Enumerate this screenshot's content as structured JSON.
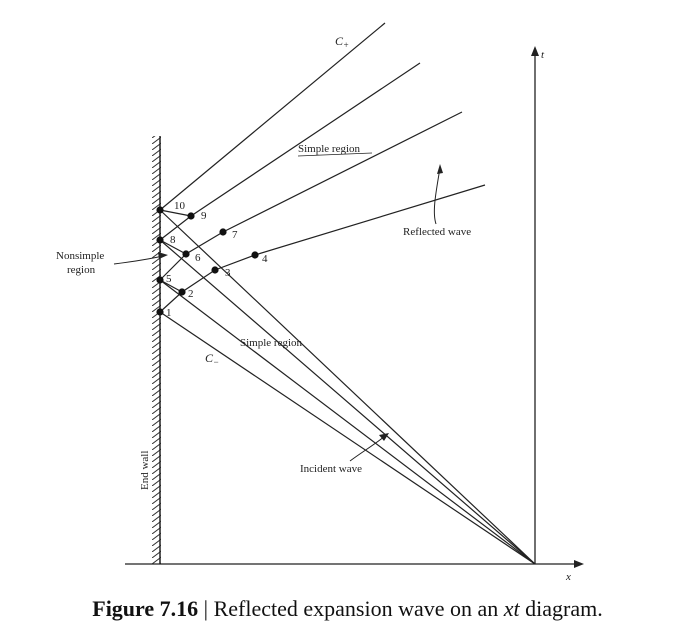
{
  "labels": {
    "c_plus": "C",
    "c_plus_sub": "+",
    "c_minus": "C",
    "c_minus_sub": "−",
    "simple_region_top": "Simple region",
    "simple_region_bottom": "Simple region",
    "reflected_wave": "Reflected wave",
    "nonsimple_line1": "Nonsimple",
    "nonsimple_line2": "region",
    "incident_wave": "Incident wave",
    "end_wall": "End wall",
    "t_axis": "t",
    "x_axis": "x"
  },
  "points": [
    "1",
    "2",
    "3",
    "4",
    "5",
    "6",
    "7",
    "8",
    "9",
    "10"
  ],
  "caption": {
    "figure": "Figure 7.16",
    "separator": " | ",
    "text_before": "Reflected expansion wave on an ",
    "var": "xt",
    "text_after": " diagram."
  }
}
